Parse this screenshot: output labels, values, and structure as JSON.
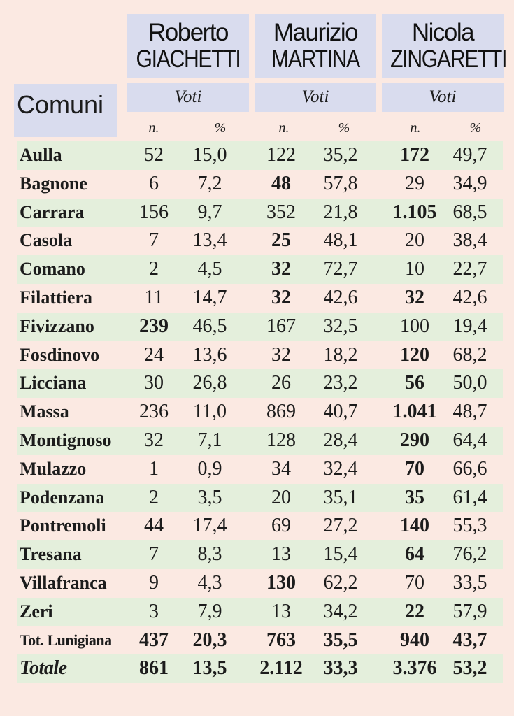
{
  "header": {
    "comuni_label": "Comuni",
    "candidates": [
      {
        "first": "Roberto",
        "last": "GIACHETTI",
        "voti": "Voti",
        "n": "n.",
        "pct": "%"
      },
      {
        "first": "Maurizio",
        "last": "MARTINA",
        "voti": "Voti",
        "n": "n.",
        "pct": "%"
      },
      {
        "first": "Nicola",
        "last": "ZINGARETTI",
        "voti": "Voti",
        "n": "n.",
        "pct": "%"
      }
    ]
  },
  "rows": [
    {
      "name": "Aulla",
      "cells": [
        "52",
        "15,0",
        "122",
        "35,2",
        "172",
        "49,7"
      ],
      "winner": 2
    },
    {
      "name": "Bagnone",
      "cells": [
        "6",
        "7,2",
        "48",
        "57,8",
        "29",
        "34,9"
      ],
      "winner": 1
    },
    {
      "name": "Carrara",
      "cells": [
        "156",
        "9,7",
        "352",
        "21,8",
        "1.105",
        "68,5"
      ],
      "winner": 2
    },
    {
      "name": "Casola",
      "cells": [
        "7",
        "13,4",
        "25",
        "48,1",
        "20",
        "38,4"
      ],
      "winner": 1
    },
    {
      "name": "Comano",
      "cells": [
        "2",
        "4,5",
        "32",
        "72,7",
        "10",
        "22,7"
      ],
      "winner": 1
    },
    {
      "name": "Filattiera",
      "cells": [
        "11",
        "14,7",
        "32",
        "42,6",
        "32",
        "42,6"
      ],
      "winner": [
        1,
        2
      ]
    },
    {
      "name": "Fivizzano",
      "cells": [
        "239",
        "46,5",
        "167",
        "32,5",
        "100",
        "19,4"
      ],
      "winner": 0
    },
    {
      "name": "Fosdinovo",
      "cells": [
        "24",
        "13,6",
        "32",
        "18,2",
        "120",
        "68,2"
      ],
      "winner": 2
    },
    {
      "name": "Licciana",
      "cells": [
        "30",
        "26,8",
        "26",
        "23,2",
        "56",
        "50,0"
      ],
      "winner": 2
    },
    {
      "name": "Massa",
      "cells": [
        "236",
        "11,0",
        "869",
        "40,7",
        "1.041",
        "48,7"
      ],
      "winner": 2
    },
    {
      "name": "Montignoso",
      "cells": [
        "32",
        "7,1",
        "128",
        "28,4",
        "290",
        "64,4"
      ],
      "winner": 2
    },
    {
      "name": "Mulazzo",
      "cells": [
        "1",
        "0,9",
        "34",
        "32,4",
        "70",
        "66,6"
      ],
      "winner": 2
    },
    {
      "name": "Podenzana",
      "cells": [
        "2",
        "3,5",
        "20",
        "35,1",
        "35",
        "61,4"
      ],
      "winner": 2
    },
    {
      "name": "Pontremoli",
      "cells": [
        "44",
        "17,4",
        "69",
        "27,2",
        "140",
        "55,3"
      ],
      "winner": 2
    },
    {
      "name": "Tresana",
      "cells": [
        "7",
        "8,3",
        "13",
        "15,4",
        "64",
        "76,2"
      ],
      "winner": 2
    },
    {
      "name": "Villafranca",
      "cells": [
        "9",
        "4,3",
        "130",
        "62,2",
        "70",
        "33,5"
      ],
      "winner": 1
    },
    {
      "name": "Zeri",
      "cells": [
        "3",
        "7,9",
        "13",
        "34,2",
        "22",
        "57,9"
      ],
      "winner": 2
    }
  ],
  "totals": [
    {
      "name": "Tot. Lunigiana",
      "cells": [
        "437",
        "20,3",
        "763",
        "35,5",
        "940",
        "43,7"
      ]
    },
    {
      "name": "Totale",
      "cells": [
        "861",
        "13,5",
        "2.112",
        "33,3",
        "3.376",
        "53,2"
      ]
    }
  ],
  "colors": {
    "background": "#fbe9e2",
    "header": "#d9dcee",
    "stripe": "#e4efdc"
  }
}
